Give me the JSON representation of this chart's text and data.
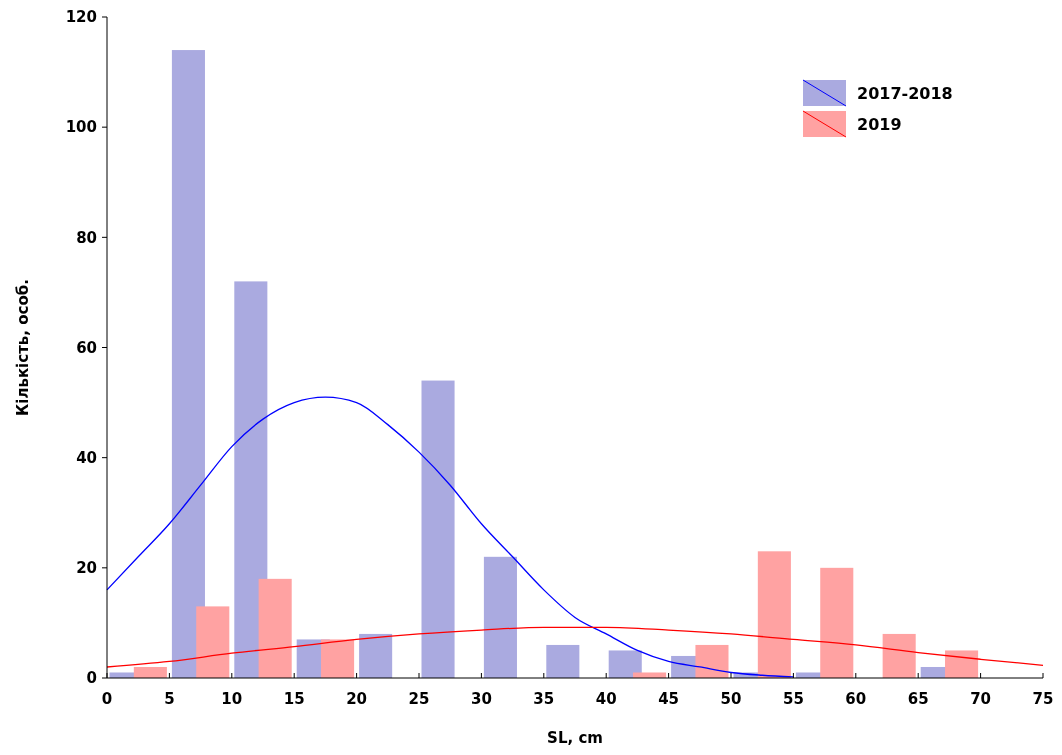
{
  "chart_data": {
    "type": "histogram",
    "xlabel": "SL, cm",
    "ylabel": "Кількість, особ.",
    "bins": [
      0,
      5,
      10,
      15,
      20,
      25,
      30,
      35,
      40,
      45,
      50,
      55,
      60,
      65,
      70,
      75
    ],
    "series": [
      {
        "name": "2017-2018",
        "color": "#aaaae0",
        "values": [
          1,
          114,
          72,
          7,
          8,
          54,
          22,
          6,
          5,
          4,
          1,
          1,
          0,
          2,
          0
        ]
      },
      {
        "name": "2019",
        "color": "#ffa2a2",
        "values": [
          2,
          13,
          18,
          7,
          0,
          0,
          0,
          0,
          1,
          6,
          23,
          20,
          8,
          5,
          0
        ]
      },
      {
        "type": "line",
        "color": "#0000ff",
        "x": [
          0,
          2.5,
          5,
          7.5,
          10,
          12.5,
          15,
          17.5,
          20,
          22.5,
          25,
          27.5,
          30,
          32.5,
          35,
          37.5,
          40,
          42.5,
          45,
          47.5,
          50,
          52.5,
          55
        ],
        "values": [
          16,
          22,
          28,
          35,
          42,
          47,
          50,
          51,
          50,
          46,
          41,
          35,
          28,
          22,
          16,
          11,
          8,
          5,
          3,
          2,
          1,
          0.5,
          0.2
        ]
      },
      {
        "type": "line",
        "color": "#ff0000",
        "x": [
          0,
          5,
          10,
          15,
          20,
          25,
          30,
          35,
          40,
          45,
          50,
          55,
          60,
          65,
          70,
          75
        ],
        "values": [
          2,
          3,
          4.5,
          5.7,
          7,
          8,
          8.7,
          9.2,
          9.2,
          8.7,
          8,
          7,
          6,
          4.6,
          3.4,
          2.3
        ]
      }
    ],
    "xlim": [
      0,
      75
    ],
    "xticks": [
      0,
      5,
      10,
      15,
      20,
      25,
      30,
      35,
      40,
      45,
      50,
      55,
      60,
      65,
      70,
      75
    ],
    "ylim": [
      0,
      120
    ],
    "yticks": [
      0,
      20,
      40,
      60,
      80,
      100,
      120
    ],
    "grid": false,
    "legend": "top right"
  }
}
